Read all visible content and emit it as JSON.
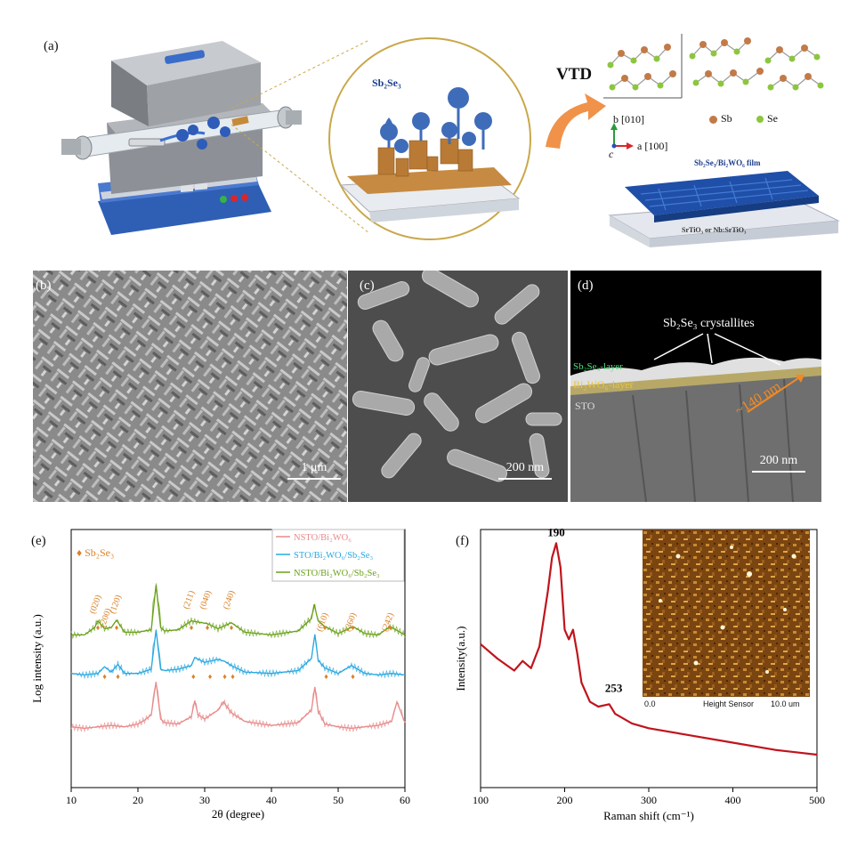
{
  "panel_a": {
    "label": "(a)",
    "droplet_label": "Sb₂Se₃",
    "arrow_label": "VTD",
    "axis_b": "b [010]",
    "axis_a": "a [100]",
    "axis_c": "c",
    "legend_sb": "Sb",
    "legend_se": "Se",
    "film_label": "Sb₂Se₃/Bi₂WO₆ film",
    "substrate_label": "SrTiO₃ or Nb:SrTiO₃"
  },
  "panel_b": {
    "label": "(b)",
    "scale": "1 μm"
  },
  "panel_c": {
    "label": "(c)",
    "scale": "200 nm"
  },
  "panel_d": {
    "label": "(d)",
    "crystallites": "Sb₂Se₃ crystallites",
    "layer1": "Sb₂Se₃-layer",
    "layer2": "Bi₂WO₆-layer",
    "layer3": "STO",
    "thickness": "~140 nm",
    "scale": "200 nm"
  },
  "panel_e": {
    "label": "(e)"
  },
  "panel_f": {
    "label": "(f)",
    "inset_min": "0.0",
    "inset_caption": "Height Sensor",
    "inset_max": "10.0 um"
  },
  "colors": {
    "red": "#e88a8a",
    "blue": "#29a8e0",
    "green": "#6aa11a",
    "orange": "#d9822b",
    "raman": "#c0141c"
  },
  "chart_data": [
    {
      "type": "line",
      "xlabel": "2θ (degree)",
      "ylabel": "Log intensity (a.u.)",
      "xlim": [
        10,
        60
      ],
      "xticks": [
        10,
        20,
        30,
        40,
        50,
        60
      ],
      "log_scale": true,
      "legend_position": "top-right",
      "marker_legend": "Sb₂Se₃",
      "series": [
        {
          "name": "NSTO/Bi₂WO₆",
          "color": "#e88a8a",
          "x": [
            10,
            12,
            14,
            16,
            18,
            20,
            21,
            22,
            22.7,
            23.4,
            24,
            26,
            28,
            28.5,
            29,
            30,
            32,
            32.8,
            34,
            36,
            40,
            44,
            46,
            46.5,
            47,
            48,
            50,
            52,
            54,
            56,
            58,
            58.8,
            60
          ],
          "y": [
            2.0,
            1.9,
            2.0,
            2.1,
            2.0,
            2.2,
            2.5,
            3.0,
            9.0,
            2.6,
            2.3,
            2.2,
            2.8,
            4.8,
            3.0,
            2.6,
            3.5,
            4.6,
            3.2,
            2.4,
            2.1,
            2.3,
            3.5,
            7.6,
            3.4,
            2.2,
            2.0,
            1.9,
            2.0,
            2.1,
            2.4,
            4.6,
            2.3
          ]
        },
        {
          "name": "STO/Bi₂WO₆/Sb₂Se₃",
          "color": "#29a8e0",
          "x": [
            10,
            12,
            14,
            15,
            16,
            17,
            18,
            20,
            22,
            22.7,
            23.4,
            24,
            26,
            28,
            28.5,
            30,
            32,
            33,
            34,
            36,
            40,
            44,
            46,
            46.5,
            47,
            48,
            50,
            52,
            54,
            56,
            58,
            60
          ],
          "y": [
            2.0,
            1.9,
            2.0,
            2.5,
            2.1,
            2.7,
            2.0,
            2.0,
            2.3,
            8.5,
            2.3,
            2.2,
            2.3,
            2.6,
            3.4,
            2.9,
            3.2,
            3.0,
            2.6,
            2.1,
            2.0,
            2.2,
            3.3,
            7.4,
            3.1,
            2.4,
            2.0,
            2.6,
            2.0,
            1.9,
            2.0,
            1.9
          ]
        },
        {
          "name": "NSTO/Bi₂WO₆/Sb₂Se₃",
          "color": "#6aa11a",
          "x": [
            10,
            12,
            13.5,
            14,
            15,
            16,
            16.8,
            18,
            20,
            22,
            22.7,
            23.4,
            24,
            26,
            28,
            30.4,
            32,
            34,
            36,
            40,
            44,
            46,
            46.4,
            47,
            48,
            50,
            52.2,
            54,
            56,
            57.8,
            60
          ],
          "y": [
            2.0,
            2.0,
            2.6,
            3.3,
            2.5,
            2.6,
            3.4,
            2.2,
            2.2,
            2.4,
            12.0,
            2.6,
            2.3,
            2.4,
            3.3,
            3.0,
            2.5,
            3.1,
            2.2,
            2.0,
            2.3,
            3.6,
            6.0,
            3.3,
            2.7,
            2.1,
            2.7,
            2.1,
            2.0,
            2.7,
            2.0
          ]
        }
      ],
      "annotations": [
        "(020)",
        "(200)",
        "(120)",
        "(211)",
        "(040)",
        "(240)",
        "(610)",
        "(360)",
        "(242)"
      ]
    },
    {
      "type": "line",
      "xlabel": "Raman shift (cm⁻¹)",
      "ylabel": "Intensity(a.u.)",
      "xlim": [
        100,
        500
      ],
      "xticks": [
        100,
        200,
        300,
        400,
        500
      ],
      "series": [
        {
          "color": "#c0141c",
          "x": [
            100,
            120,
            140,
            150,
            160,
            170,
            180,
            185,
            190,
            195,
            200,
            205,
            210,
            215,
            220,
            230,
            240,
            253,
            260,
            280,
            300,
            350,
            400,
            450,
            500
          ],
          "y": [
            0.56,
            0.5,
            0.45,
            0.49,
            0.46,
            0.55,
            0.78,
            0.92,
            0.98,
            0.88,
            0.62,
            0.58,
            0.62,
            0.52,
            0.4,
            0.32,
            0.3,
            0.31,
            0.27,
            0.23,
            0.21,
            0.18,
            0.15,
            0.12,
            0.1
          ]
        }
      ],
      "peak_labels": [
        "190",
        "253"
      ]
    }
  ]
}
